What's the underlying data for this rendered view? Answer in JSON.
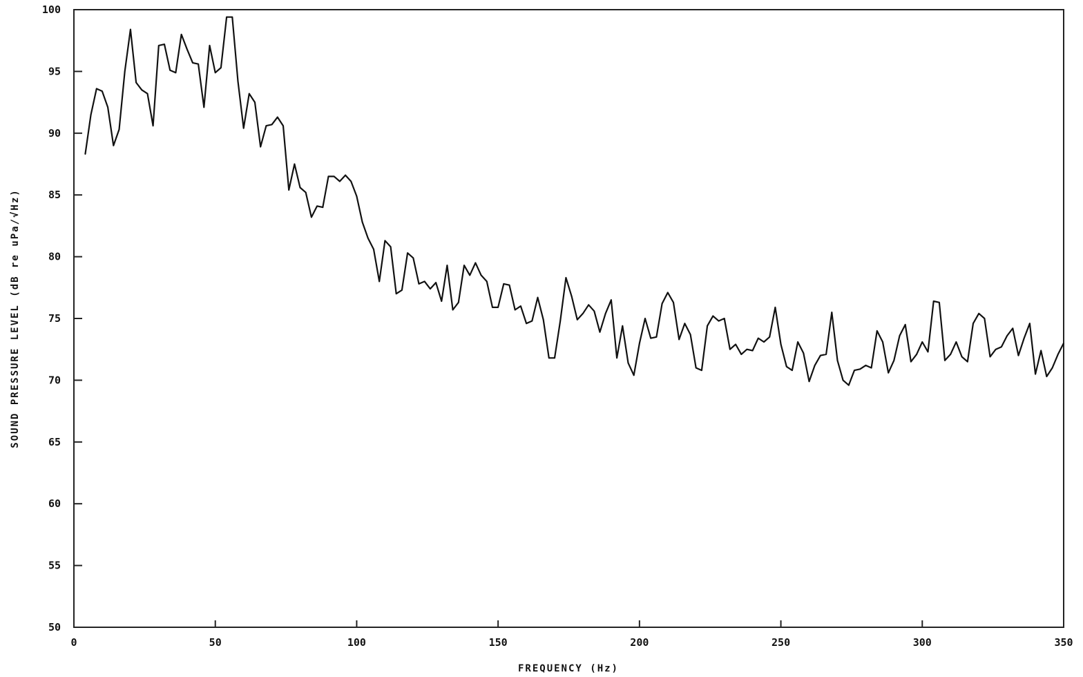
{
  "chart_data": {
    "type": "line",
    "xlabel": "FREQUENCY (Hz)",
    "ylabel": "SOUND PRESSURE LEVEL (dB re uPa/√Hz)",
    "xlim": [
      0,
      350
    ],
    "ylim": [
      50,
      100
    ],
    "xticks": [
      0,
      50,
      100,
      150,
      200,
      250,
      300,
      350
    ],
    "yticks": [
      50,
      55,
      60,
      65,
      70,
      75,
      80,
      85,
      90,
      95,
      100
    ],
    "xtick_labels": [
      "0",
      "50",
      "100",
      "150",
      "200",
      "250",
      "300",
      "350"
    ],
    "ytick_labels": [
      "50",
      "55",
      "60",
      "65",
      "70",
      "75",
      "80",
      "85",
      "90",
      "95",
      "100"
    ],
    "grid": false,
    "series": [
      {
        "x": [
          4,
          6,
          8,
          10,
          12,
          14,
          16,
          18,
          20,
          22,
          24,
          26,
          28,
          30,
          32,
          34,
          36,
          38,
          40,
          42,
          44,
          46,
          48,
          50,
          52,
          54,
          56,
          58,
          60,
          62,
          64,
          66,
          68,
          70,
          72,
          74,
          76,
          78,
          80,
          82,
          84,
          86,
          88,
          90,
          92,
          94,
          96,
          98,
          100,
          102,
          104,
          106,
          108,
          110,
          112,
          114,
          116,
          118,
          120,
          122,
          124,
          126,
          128,
          130,
          132,
          134,
          136,
          138,
          140,
          142,
          144,
          146,
          148,
          150,
          152,
          154,
          156,
          158,
          160,
          162,
          164,
          166,
          168,
          170,
          172,
          174,
          176,
          178,
          180,
          182,
          184,
          186,
          188,
          190,
          192,
          194,
          196,
          198,
          200,
          202,
          204,
          206,
          208,
          210,
          212,
          214,
          216,
          218,
          220,
          222,
          224,
          226,
          228,
          230,
          232,
          234,
          236,
          238,
          240,
          242,
          244,
          246,
          248,
          250,
          252,
          254,
          256,
          258,
          260,
          262,
          264,
          266,
          268,
          270,
          272,
          274,
          276,
          278,
          280,
          282,
          284,
          286,
          288,
          290,
          292,
          294,
          296,
          298,
          300,
          302,
          304,
          306,
          308,
          310,
          312,
          314,
          316,
          318,
          320,
          322,
          324,
          326,
          328,
          330,
          332,
          334,
          336,
          338,
          340,
          342,
          344,
          346,
          348,
          350
        ],
        "values": [
          88.3,
          91.5,
          93.6,
          93.4,
          92.1,
          89.0,
          90.3,
          95.0,
          98.4,
          94.1,
          93.5,
          93.2,
          90.6,
          97.1,
          97.2,
          95.1,
          94.9,
          98.0,
          96.8,
          95.7,
          95.6,
          92.1,
          97.1,
          94.9,
          95.3,
          99.4,
          99.4,
          94.2,
          90.4,
          93.2,
          92.5,
          88.9,
          90.6,
          90.7,
          91.3,
          90.6,
          85.4,
          87.5,
          85.6,
          85.2,
          83.2,
          84.1,
          84.0,
          86.5,
          86.5,
          86.1,
          86.6,
          86.1,
          84.9,
          82.8,
          81.5,
          80.6,
          78.0,
          81.3,
          80.8,
          77.0,
          77.3,
          80.3,
          79.9,
          77.8,
          78.0,
          77.4,
          77.9,
          76.4,
          79.3,
          75.7,
          76.3,
          79.3,
          78.5,
          79.5,
          78.5,
          78.0,
          75.9,
          75.9,
          77.8,
          77.7,
          75.7,
          76.0,
          74.6,
          74.8,
          76.7,
          74.9,
          71.8,
          71.8,
          74.8,
          78.3,
          76.8,
          74.9,
          75.4,
          76.1,
          75.6,
          73.9,
          75.4,
          76.5,
          71.8,
          74.4,
          71.4,
          70.4,
          73.0,
          75.0,
          73.4,
          73.5,
          76.2,
          77.1,
          76.3,
          73.3,
          74.6,
          73.7,
          71.0,
          70.8,
          74.4,
          75.2,
          74.8,
          75.0,
          72.5,
          72.9,
          72.1,
          72.5,
          72.4,
          73.4,
          73.1,
          73.5,
          75.9,
          72.9,
          71.1,
          70.8,
          73.1,
          72.2,
          69.9,
          71.2,
          72.0,
          72.1,
          75.5,
          71.6,
          70.0,
          69.6,
          70.8,
          70.9,
          71.2,
          71.0,
          74.0,
          73.1,
          70.6,
          71.6,
          73.6,
          74.5,
          71.5,
          72.1,
          73.1,
          72.3,
          76.4,
          76.3,
          71.6,
          72.1,
          73.1,
          71.9,
          71.5,
          74.6,
          75.4,
          75.0,
          71.9,
          72.5,
          72.7,
          73.6,
          74.2,
          72.0,
          73.4,
          74.6,
          70.5,
          72.4,
          70.3,
          71.0,
          72.1,
          73.0
        ]
      }
    ]
  }
}
